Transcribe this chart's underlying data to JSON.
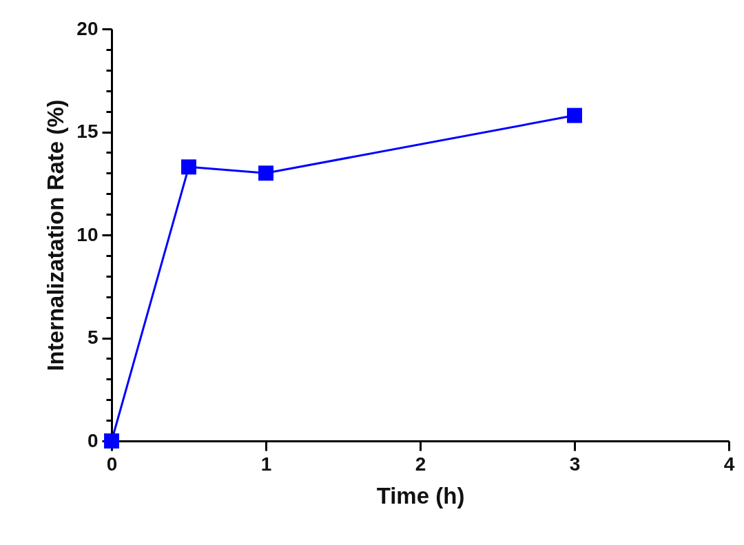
{
  "chart_data": {
    "type": "line",
    "xlabel": "Time (h)",
    "ylabel": "Internalizatation Rate (%)",
    "x": [
      0,
      0.5,
      1,
      3
    ],
    "series": [
      {
        "color": "#0000ff",
        "values": [
          0,
          13.3,
          13.0,
          15.8
        ]
      }
    ],
    "xlim": [
      0,
      4
    ],
    "xticks": [
      0,
      1,
      2,
      3,
      4
    ],
    "ylim": [
      0,
      20
    ],
    "yticks": [
      0,
      {
        "value": 1,
        "label": null
      },
      {
        "value": 2,
        "label": null
      },
      {
        "value": 3,
        "label": null
      },
      {
        "value": 4,
        "label": null
      },
      5,
      {
        "value": 6,
        "label": null
      },
      {
        "value": 7,
        "label": null
      },
      {
        "value": 8,
        "label": null
      },
      {
        "value": 9,
        "label": null
      },
      10,
      {
        "value": 11,
        "label": null
      },
      {
        "value": 12,
        "label": null
      },
      {
        "value": 13,
        "label": null
      },
      {
        "value": 14,
        "label": null
      },
      15,
      {
        "value": 16,
        "label": null
      },
      {
        "value": 17,
        "label": null
      },
      {
        "value": 18,
        "label": null
      },
      {
        "value": 19,
        "label": null
      },
      20
    ],
    "marker": "square",
    "line_style": "solid",
    "grid": false,
    "legend": false
  }
}
